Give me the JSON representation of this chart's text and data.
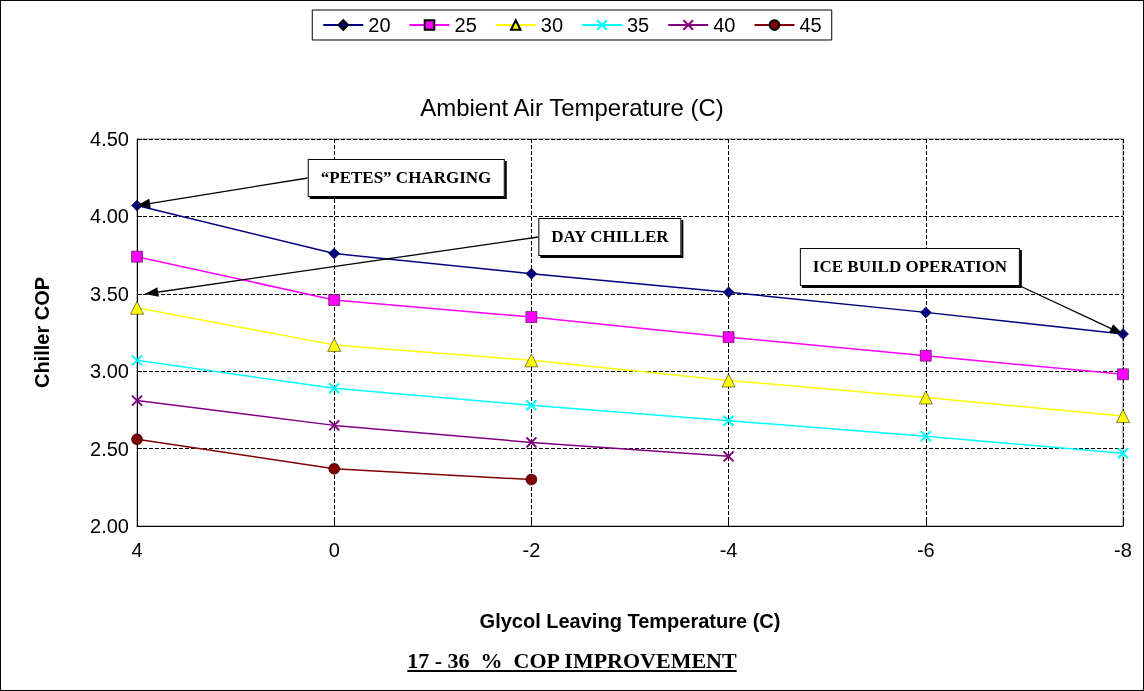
{
  "chart_data": {
    "type": "line",
    "legend_title": "Ambient Air Temperature (C)",
    "xlabel": "Glycol Leaving Temperature (C)",
    "ylabel": "Chiller COP",
    "categories": [
      "4",
      "0",
      "-2",
      "-4",
      "-6",
      "-8"
    ],
    "series": [
      {
        "name": "20",
        "color": "#000080",
        "marker": "diamond",
        "values": [
          4.07,
          3.76,
          3.63,
          3.51,
          3.38,
          3.24
        ]
      },
      {
        "name": "25",
        "color": "#ff00ff",
        "marker": "square",
        "values": [
          3.74,
          3.46,
          3.35,
          3.22,
          3.1,
          2.98
        ]
      },
      {
        "name": "30",
        "color": "#ffff00",
        "marker": "triangle",
        "values": [
          3.41,
          3.17,
          3.07,
          2.94,
          2.83,
          2.71
        ]
      },
      {
        "name": "35",
        "color": "#00ffff",
        "marker": "cross",
        "values": [
          3.07,
          2.89,
          2.78,
          2.68,
          2.58,
          2.47
        ]
      },
      {
        "name": "40",
        "color": "#800080",
        "marker": "cross",
        "values": [
          2.81,
          2.65,
          2.54,
          2.45,
          null,
          null
        ]
      },
      {
        "name": "45",
        "color": "#800000",
        "marker": "circle",
        "values": [
          2.56,
          2.37,
          2.3,
          null,
          null,
          null
        ]
      }
    ],
    "ylim": [
      2,
      4.5
    ],
    "yticks": [
      {
        "value": 2,
        "label": "2.00"
      },
      {
        "value": 2.5,
        "label": "2.50"
      },
      {
        "value": 3,
        "label": "3.00"
      },
      {
        "value": 3.5,
        "label": "3.50"
      },
      {
        "value": 4,
        "label": "4.00"
      },
      {
        "value": 4.5,
        "label": "4.50"
      }
    ],
    "grid": true,
    "legend": "top",
    "line_style": "solid",
    "annotations": [
      {
        "text": "“PETES” CHARGING",
        "x": "4",
        "y": 4.07
      },
      "DAY CHILLER",
      {
        "text": "ICE BUILD OPERATION",
        "x": "-8",
        "y": 3.24
      },
      "17 - 36  %  COP IMPROVEMENT"
    ]
  }
}
